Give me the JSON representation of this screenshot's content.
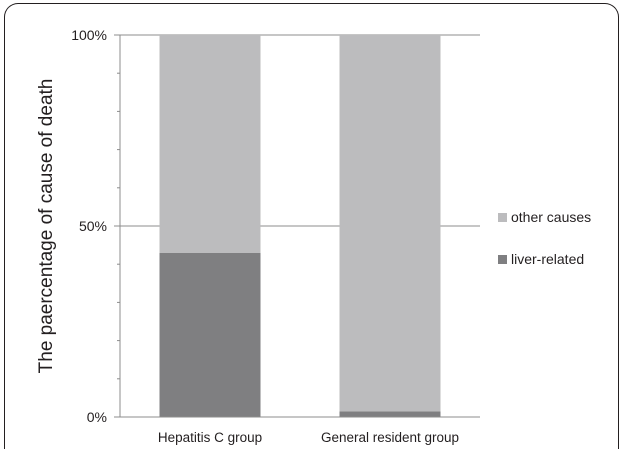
{
  "chart_data": {
    "type": "bar",
    "stacked": true,
    "categories": [
      "Hepatitis C group",
      "General resident group"
    ],
    "series": [
      {
        "name": "liver-related",
        "values": [
          43,
          1.5
        ],
        "color": "#7f7f81"
      },
      {
        "name": "other causes",
        "values": [
          57,
          98.5
        ],
        "color": "#bcbcbe"
      }
    ],
    "ylabel": "The paercentage of cause of death",
    "ylim": [
      0,
      100
    ],
    "yticks": [
      {
        "value": 0,
        "label": "0%"
      },
      {
        "value": 50,
        "label": "50%"
      },
      {
        "value": 100,
        "label": "100%"
      }
    ],
    "legend_position": "right",
    "legend": [
      "other causes",
      "liver-related"
    ],
    "grid": true
  }
}
